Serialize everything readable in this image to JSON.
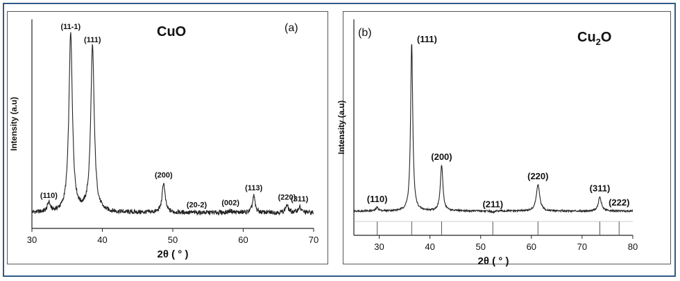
{
  "chart_data": [
    {
      "type": "line",
      "panel_label": "(a)",
      "title": "CuO",
      "title_sub": "",
      "title_tail": "",
      "xlabel": "2θ ( ° )",
      "ylabel": "Intensity (a.u)",
      "xlim": [
        30,
        70
      ],
      "xticks": [
        30,
        40,
        50,
        60,
        70
      ],
      "ylim": [
        0,
        100
      ],
      "yticks": false,
      "baseline": 4,
      "noise": 1.2,
      "peaks": [
        {
          "x": 32.4,
          "h": 9,
          "w": 0.22,
          "label": "(110)"
        },
        {
          "x": 35.5,
          "h": 100,
          "w": 0.3,
          "label": "(11-1)"
        },
        {
          "x": 38.6,
          "h": 93,
          "w": 0.3,
          "label": "(111)"
        },
        {
          "x": 48.7,
          "h": 20,
          "w": 0.25,
          "label": "(200)"
        },
        {
          "x": 53.4,
          "h": 4,
          "w": 0.25,
          "label": "(20-2)"
        },
        {
          "x": 58.2,
          "h": 5,
          "w": 0.28,
          "label": "(002)"
        },
        {
          "x": 61.5,
          "h": 13,
          "w": 0.22,
          "label": "(113)"
        },
        {
          "x": 66.2,
          "h": 8,
          "w": 0.25,
          "label": "(220)"
        },
        {
          "x": 68.0,
          "h": 7,
          "w": 0.25,
          "label": "(311)"
        }
      ],
      "reference_lines": []
    },
    {
      "type": "line",
      "panel_label": "(b)",
      "title": "Cu",
      "title_sub": "2",
      "title_tail": "O",
      "xlabel": "2θ ( ° )",
      "ylabel": "Intensity (a.u)",
      "xlim": [
        25,
        80
      ],
      "xticks": [
        30,
        40,
        50,
        60,
        70,
        80
      ],
      "ylim": [
        0,
        100
      ],
      "yticks": false,
      "baseline": 2,
      "noise": 0.5,
      "peaks": [
        {
          "x": 29.6,
          "h": 4,
          "w": 0.28,
          "label": "(110)"
        },
        {
          "x": 36.4,
          "h": 98,
          "w": 0.25,
          "label": "(111)"
        },
        {
          "x": 42.3,
          "h": 28,
          "w": 0.3,
          "label": "(200)"
        },
        {
          "x": 52.4,
          "h": 1,
          "w": 0.3,
          "label": "(211)"
        },
        {
          "x": 61.3,
          "h": 17,
          "w": 0.4,
          "label": "(220)"
        },
        {
          "x": 73.5,
          "h": 10,
          "w": 0.35,
          "label": "(311)"
        },
        {
          "x": 77.3,
          "h": 2,
          "w": 0.35,
          "label": "(222)"
        }
      ],
      "reference_lines": [
        29.6,
        36.4,
        42.3,
        52.4,
        61.3,
        73.5,
        77.3
      ]
    }
  ]
}
